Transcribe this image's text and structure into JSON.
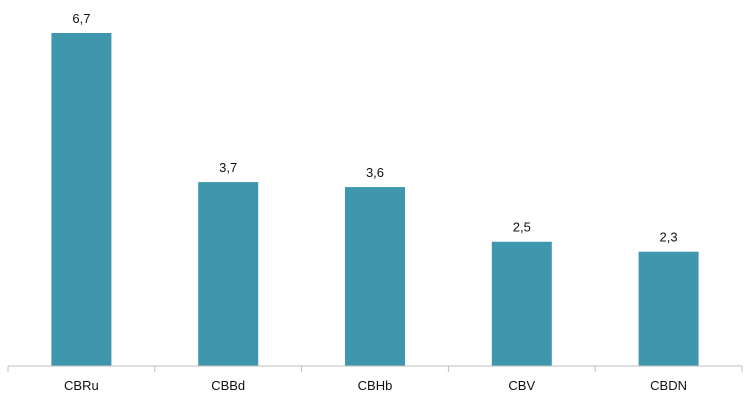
{
  "chart_data": {
    "type": "bar",
    "title": "",
    "xlabel": "",
    "ylabel": "",
    "categories": [
      "CBRu",
      "CBBd",
      "CBHb",
      "CBV",
      "CBDN"
    ],
    "values": [
      6.7,
      3.7,
      3.6,
      2.5,
      2.3
    ],
    "value_labels": [
      "6,7",
      "3,7",
      "3,6",
      "2,5",
      "2,3"
    ],
    "ylim": [
      0,
      6.7
    ],
    "grid": false,
    "legend": "none",
    "bar_color": "#3E97AD",
    "axis_color": "#BFBFBF"
  }
}
